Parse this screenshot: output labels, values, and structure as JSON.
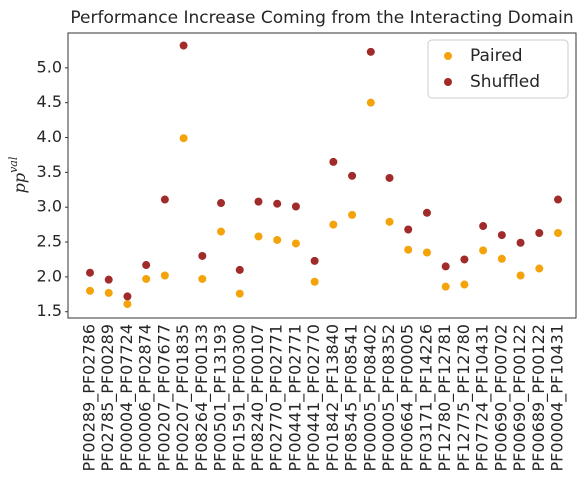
{
  "chart_data": {
    "type": "scatter",
    "title": "Performance Increase Coming from the Interacting Domain",
    "y_label": "pp",
    "y_label_sup": "val",
    "categories": [
      "PF00289_PF02786",
      "PF02785_PF00289",
      "PF00004_PF07724",
      "PF00006_PF02874",
      "PF00207_PF07677",
      "PF00207_PF01835",
      "PF08264_PF00133",
      "PF00501_PF13193",
      "PF01591_PF00300",
      "PF08240_PF00107",
      "PF02770_PF02771",
      "PF00441_PF02771",
      "PF00441_PF02770",
      "PF01842_PF13840",
      "PF08545_PF08541",
      "PF00005_PF08402",
      "PF00005_PF08352",
      "PF00664_PF00005",
      "PF03171_PF14226",
      "PF12780_PF12781",
      "PF12775_PF12780",
      "PF07724_PF10431",
      "PF00690_PF00702",
      "PF00690_PF00122",
      "PF00689_PF00122",
      "PF00004_PF10431"
    ],
    "series": [
      {
        "name": "Paired",
        "color": "#f5a30a",
        "values": [
          1.8,
          1.77,
          1.61,
          1.97,
          2.02,
          3.99,
          1.97,
          2.65,
          1.76,
          2.58,
          2.53,
          2.48,
          1.93,
          2.75,
          2.89,
          4.5,
          2.79,
          2.39,
          2.35,
          1.86,
          1.89,
          2.38,
          2.26,
          2.02,
          2.12,
          2.63
        ]
      },
      {
        "name": "Shuffled",
        "color": "#a12a2a",
        "values": [
          2.06,
          1.96,
          1.72,
          2.17,
          3.11,
          5.32,
          2.3,
          3.06,
          2.1,
          3.08,
          3.05,
          3.01,
          2.23,
          3.65,
          3.45,
          5.23,
          3.42,
          2.68,
          2.92,
          2.15,
          2.25,
          2.73,
          2.6,
          2.49,
          2.63,
          3.11
        ]
      }
    ],
    "ylim": [
      1.41,
      5.5
    ],
    "yticks": [
      1.5,
      {
        "value": 2,
        "label": "2.0"
      },
      2.5,
      {
        "value": 3,
        "label": "3.0"
      },
      3.5,
      {
        "value": 4,
        "label": "4.0"
      },
      4.5,
      {
        "value": 5,
        "label": "5.0"
      }
    ],
    "legend": "upper right"
  }
}
